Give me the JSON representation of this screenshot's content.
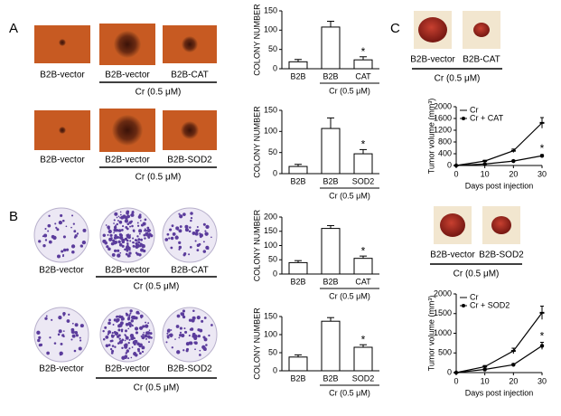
{
  "panel_labels": [
    "A",
    "B",
    "C"
  ],
  "image_rows": [
    {
      "captions": [
        "B2B-vector",
        "B2B-vector",
        "B2B-CAT"
      ],
      "group_label": "Cr (0.5 μM)"
    },
    {
      "captions": [
        "B2B-vector",
        "B2B-vector",
        "B2B-SOD2"
      ],
      "group_label": "Cr (0.5 μM)"
    },
    {
      "captions": [
        "B2B-vector",
        "B2B-vector",
        "B2B-CAT"
      ],
      "group_label": "Cr (0.5 μM)"
    },
    {
      "captions": [
        "B2B-vector",
        "B2B-vector",
        "B2B-SOD2"
      ],
      "group_label": "Cr (0.5 μM)"
    },
    {
      "captions": [
        "B2B-vector",
        "B2B-CAT"
      ],
      "group_label": "Cr (0.5 μM)"
    },
    {
      "captions": [
        "B2B-vector",
        "B2B-SOD2"
      ],
      "group_label": "Cr (0.5 μM)"
    }
  ],
  "chart_data": [
    {
      "type": "bar",
      "y_label": "COLONY NUMBER",
      "categories": [
        "B2B",
        "B2B",
        "CAT"
      ],
      "values": [
        18,
        108,
        23
      ],
      "errors": [
        6,
        15,
        8
      ],
      "significance": [
        null,
        null,
        "*"
      ],
      "group_label": "Cr (0.5 μM)",
      "ylim": [
        0,
        150
      ],
      "yticks": [
        0,
        50,
        100,
        150
      ],
      "color": "#ffffff"
    },
    {
      "type": "bar",
      "y_label": "COLONY NUMBER",
      "categories": [
        "B2B",
        "B2B",
        "SOD2"
      ],
      "values": [
        17,
        107,
        47
      ],
      "errors": [
        5,
        25,
        10
      ],
      "significance": [
        null,
        null,
        "*"
      ],
      "group_label": "Cr (0.5 μM)",
      "ylim": [
        0,
        150
      ],
      "yticks": [
        0,
        50,
        100,
        150
      ],
      "color": "#ffffff"
    },
    {
      "type": "bar",
      "y_label": "COLONY NUMBER",
      "categories": [
        "B2B",
        "B2B",
        "CAT"
      ],
      "values": [
        40,
        160,
        55
      ],
      "errors": [
        7,
        10,
        8
      ],
      "significance": [
        null,
        null,
        "*"
      ],
      "group_label": "Cr (0.5 μM)",
      "ylim": [
        0,
        200
      ],
      "yticks": [
        0,
        50,
        100,
        150,
        200
      ],
      "color": "#ffffff"
    },
    {
      "type": "bar",
      "y_label": "COLONY NUMBER",
      "categories": [
        "B2B",
        "B2B",
        "SOD2"
      ],
      "values": [
        38,
        137,
        65
      ],
      "errors": [
        6,
        10,
        7
      ],
      "significance": [
        null,
        null,
        "*"
      ],
      "group_label": "Cr (0.5 μM)",
      "ylim": [
        0,
        150
      ],
      "yticks": [
        0,
        50,
        100,
        150
      ],
      "color": "#ffffff"
    },
    {
      "type": "line",
      "y_label": "Tumor volume (mm³)",
      "x_label": "Days post injection",
      "x": [
        0,
        10,
        20,
        30
      ],
      "xlim": [
        0,
        30
      ],
      "xticks": [
        0,
        10,
        20,
        30
      ],
      "ylim": [
        0,
        2000
      ],
      "yticks": [
        0,
        400,
        800,
        1200,
        1600,
        2000
      ],
      "legend": "upper left",
      "series": [
        {
          "name": "Cr",
          "color": "#000000",
          "values": [
            0,
            150,
            500,
            1450
          ],
          "errors": [
            0,
            30,
            60,
            180
          ],
          "significance": [
            null,
            null,
            null,
            null
          ]
        },
        {
          "name": "Cr + CAT",
          "color": "#000000",
          "values": [
            0,
            50,
            150,
            330
          ],
          "errors": [
            0,
            15,
            30,
            40
          ],
          "significance": [
            null,
            null,
            null,
            "*"
          ]
        }
      ]
    },
    {
      "type": "line",
      "y_label": "Tumor volume (mm³)",
      "x_label": "Days post injection",
      "x": [
        0,
        10,
        20,
        30
      ],
      "xlim": [
        0,
        30
      ],
      "xticks": [
        0,
        10,
        20,
        30
      ],
      "ylim": [
        0,
        2000
      ],
      "yticks": [
        0,
        500,
        1000,
        1500,
        2000
      ],
      "legend": "upper left",
      "series": [
        {
          "name": "Cr",
          "color": "#000000",
          "values": [
            0,
            150,
            550,
            1520
          ],
          "errors": [
            0,
            30,
            70,
            170
          ],
          "significance": [
            null,
            null,
            null,
            null
          ]
        },
        {
          "name": "Cr + SOD2",
          "color": "#000000",
          "values": [
            0,
            80,
            200,
            680
          ],
          "errors": [
            0,
            20,
            30,
            90
          ],
          "significance": [
            null,
            null,
            null,
            "*"
          ]
        }
      ]
    }
  ]
}
